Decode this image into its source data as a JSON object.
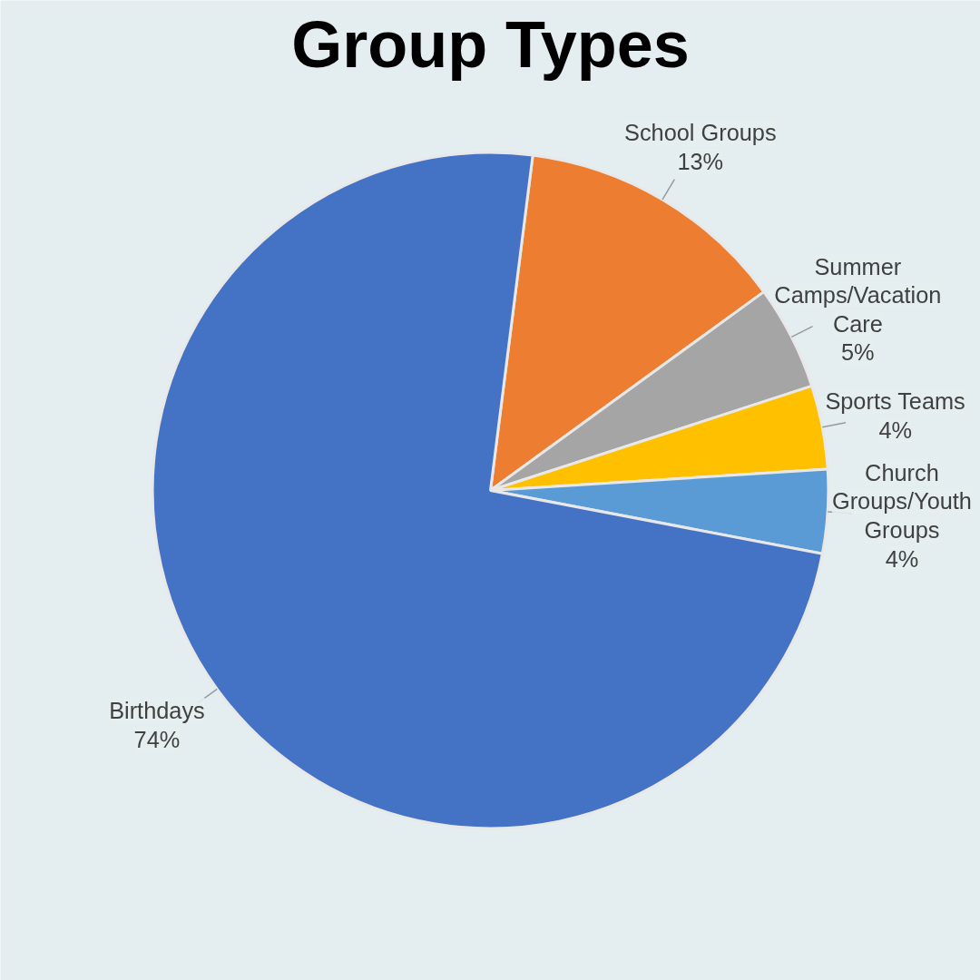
{
  "chart_data": {
    "type": "pie",
    "title": "Group Types",
    "categories": [
      "School Groups",
      "Summer Camps/Vacation Care",
      "Sports Teams",
      "Church Groups/Youth Groups",
      "Birthdays"
    ],
    "values": [
      13,
      5,
      4,
      4,
      74
    ],
    "value_labels": [
      "13%",
      "5%",
      "4%",
      "4%",
      "74%"
    ],
    "colors": [
      "#ed7d31",
      "#a5a5a5",
      "#ffc000",
      "#5b9bd5",
      "#4472c4"
    ]
  }
}
